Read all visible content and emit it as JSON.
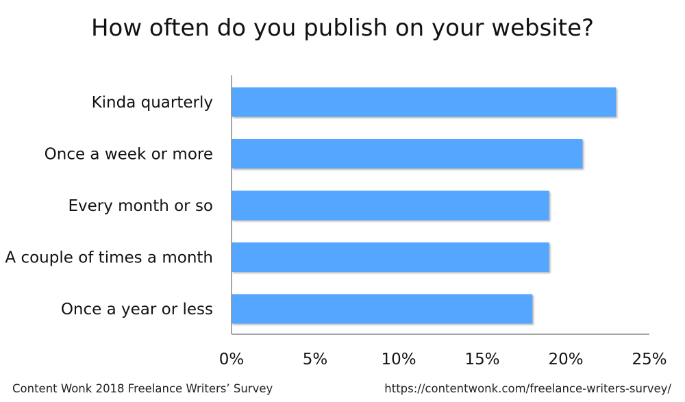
{
  "chart_data": {
    "type": "bar",
    "orientation": "horizontal",
    "title": "How often do you publish on your website?",
    "categories": [
      "Kinda quarterly",
      "Once a week or more",
      "Every month or so",
      "A couple of times a month",
      "Once a year or less"
    ],
    "values": [
      23,
      21,
      19,
      19,
      18
    ],
    "unit": "%",
    "xlim": [
      0,
      25
    ],
    "xticks": [
      "0%",
      "5%",
      "10%",
      "15%",
      "20%",
      "25%"
    ],
    "grid": false,
    "legend": "none",
    "colors": {
      "bar": "#55a6ff",
      "bar_shadow": "#b9b9b9",
      "axis": "#888888"
    }
  },
  "footer": {
    "source": "Content Wonk 2018 Freelance Writers’ Survey",
    "url": "https://contentwonk.com/freelance-writers-survey/"
  }
}
